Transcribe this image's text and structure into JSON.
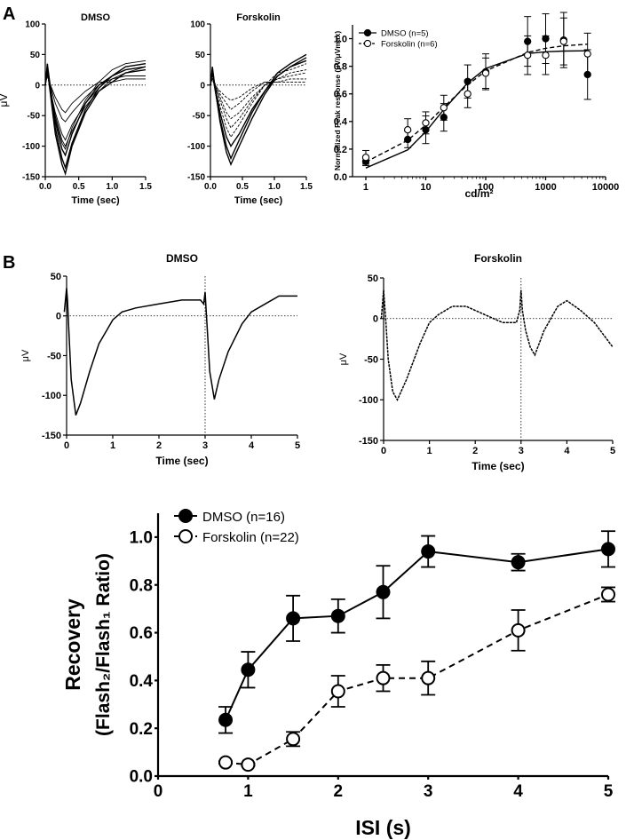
{
  "panel_labels": [
    "A",
    "B"
  ],
  "chart_data": [
    {
      "id": "A_dmso_traces",
      "type": "line",
      "title": "DMSO",
      "xlabel": "Time (sec)",
      "ylabel": "μV",
      "xlim": [
        0,
        1.5
      ],
      "ylim": [
        -150,
        100
      ],
      "xticks": [
        "0.0",
        "0.5",
        "1.0",
        "1.5"
      ],
      "yticks": [
        "100",
        "50",
        "0",
        "-50",
        "-100",
        "-150"
      ],
      "series": [
        {
          "x": [
            0,
            0.03,
            0.06,
            0.15,
            0.25,
            0.3,
            0.4,
            0.6,
            0.8,
            1.0,
            1.2,
            1.5
          ],
          "y": [
            0,
            35,
            10,
            -60,
            -105,
            -115,
            -80,
            -30,
            0,
            15,
            25,
            30
          ]
        },
        {
          "x": [
            0,
            0.03,
            0.06,
            0.15,
            0.25,
            0.3,
            0.4,
            0.6,
            0.8,
            1.0,
            1.2,
            1.5
          ],
          "y": [
            0,
            30,
            5,
            -70,
            -120,
            -135,
            -95,
            -40,
            -5,
            15,
            30,
            35
          ]
        },
        {
          "x": [
            0,
            0.03,
            0.06,
            0.15,
            0.25,
            0.3,
            0.4,
            0.6,
            0.8,
            1.0,
            1.2,
            1.5
          ],
          "y": [
            0,
            25,
            0,
            -80,
            -130,
            -145,
            -100,
            -45,
            -10,
            5,
            20,
            25
          ]
        },
        {
          "x": [
            0,
            0.03,
            0.06,
            0.15,
            0.25,
            0.3,
            0.4,
            0.6,
            0.8,
            1.0,
            1.2,
            1.5
          ],
          "y": [
            0,
            30,
            5,
            -55,
            -95,
            -105,
            -70,
            -25,
            5,
            25,
            35,
            40
          ]
        },
        {
          "x": [
            0,
            0.03,
            0.06,
            0.15,
            0.25,
            0.3,
            0.4,
            0.6,
            0.8,
            1.0,
            1.2,
            1.5
          ],
          "y": [
            0,
            20,
            0,
            -50,
            -90,
            -100,
            -75,
            -35,
            -10,
            10,
            20,
            30
          ]
        },
        {
          "x": [
            0,
            0.03,
            0.06,
            0.15,
            0.25,
            0.3,
            0.4,
            0.6,
            0.8,
            1.0,
            1.2,
            1.5
          ],
          "y": [
            0,
            25,
            0,
            -45,
            -80,
            -90,
            -65,
            -30,
            -5,
            15,
            30,
            35
          ]
        },
        {
          "x": [
            0,
            0.03,
            0.06,
            0.15,
            0.25,
            0.3,
            0.4,
            0.6,
            0.8,
            1.0,
            1.2,
            1.5
          ],
          "y": [
            0,
            20,
            5,
            -30,
            -55,
            -60,
            -45,
            -20,
            0,
            10,
            15,
            15
          ]
        },
        {
          "x": [
            0,
            0.03,
            0.06,
            0.15,
            0.25,
            0.3,
            0.4,
            0.6,
            0.8,
            1.0,
            1.2,
            1.5
          ],
          "y": [
            0,
            15,
            5,
            -20,
            -40,
            -45,
            -30,
            -10,
            5,
            5,
            10,
            10
          ]
        }
      ]
    },
    {
      "id": "A_forskolin_traces",
      "type": "line",
      "title": "Forskolin",
      "xlabel": "Time (sec)",
      "ylabel": "",
      "xlim": [
        0,
        1.5
      ],
      "ylim": [
        -150,
        100
      ],
      "xticks": [
        "0.0",
        "0.5",
        "1.0",
        "1.5"
      ],
      "yticks": [
        "100",
        "50",
        "0",
        "-50",
        "-100",
        "-150"
      ],
      "series": [
        {
          "x": [
            0,
            0.03,
            0.06,
            0.15,
            0.25,
            0.32,
            0.45,
            0.65,
            0.85,
            1.05,
            1.25,
            1.5
          ],
          "y": [
            0,
            30,
            5,
            -60,
            -110,
            -130,
            -100,
            -55,
            -15,
            15,
            30,
            45
          ]
        },
        {
          "x": [
            0,
            0.03,
            0.06,
            0.15,
            0.25,
            0.32,
            0.45,
            0.65,
            0.85,
            1.05,
            1.25,
            1.5
          ],
          "y": [
            0,
            25,
            0,
            -55,
            -100,
            -120,
            -90,
            -45,
            -10,
            20,
            35,
            50
          ]
        },
        {
          "x": [
            0,
            0.03,
            0.06,
            0.15,
            0.25,
            0.32,
            0.45,
            0.65,
            0.85,
            1.05,
            1.25,
            1.5
          ],
          "y": [
            0,
            25,
            5,
            -45,
            -85,
            -100,
            -80,
            -40,
            -10,
            15,
            30,
            40
          ]
        },
        {
          "x": [
            0,
            0.03,
            0.06,
            0.15,
            0.25,
            0.32,
            0.45,
            0.65,
            0.85,
            1.05,
            1.25,
            1.5
          ],
          "y": [
            0,
            20,
            0,
            -35,
            -70,
            -85,
            -65,
            -30,
            0,
            20,
            25,
            35
          ]
        },
        {
          "x": [
            0,
            0.03,
            0.06,
            0.15,
            0.25,
            0.32,
            0.45,
            0.65,
            0.85,
            1.05,
            1.25,
            1.5
          ],
          "y": [
            0,
            20,
            5,
            -25,
            -55,
            -70,
            -55,
            -25,
            0,
            10,
            20,
            25
          ]
        },
        {
          "x": [
            0,
            0.03,
            0.06,
            0.15,
            0.25,
            0.32,
            0.45,
            0.65,
            0.85,
            1.05,
            1.25,
            1.5
          ],
          "y": [
            0,
            15,
            0,
            -20,
            -45,
            -55,
            -45,
            -20,
            0,
            10,
            15,
            20
          ]
        },
        {
          "x": [
            0,
            0.03,
            0.06,
            0.15,
            0.25,
            0.32,
            0.45,
            0.65,
            0.85,
            1.05,
            1.25,
            1.5
          ],
          "y": [
            0,
            15,
            5,
            -15,
            -30,
            -40,
            -30,
            -10,
            5,
            5,
            10,
            10
          ]
        },
        {
          "x": [
            0,
            0.03,
            0.06,
            0.15,
            0.25,
            0.32,
            0.45,
            0.65,
            0.85,
            1.05,
            1.25,
            1.5
          ],
          "y": [
            0,
            10,
            0,
            -10,
            -20,
            -25,
            -20,
            -5,
            5,
            5,
            5,
            5
          ]
        }
      ]
    },
    {
      "id": "A_intensity_response",
      "type": "scatter",
      "xlabel": "cd/m²",
      "ylabel": "Normalized Peak response (μV/μVmax)",
      "xscale": "log",
      "xlim": [
        0.6,
        10000
      ],
      "ylim": [
        0,
        1.1
      ],
      "xticks": [
        "1",
        "10",
        "100",
        "1000",
        "10000"
      ],
      "yticks": [
        "0.0",
        "0.2",
        "0.4",
        "0.6",
        "0.8",
        "1.0"
      ],
      "legend_position": "top-left",
      "series": [
        {
          "name": "DMSO (n=5)",
          "marker": "filled-circle",
          "line": "solid",
          "x": [
            1,
            5,
            10,
            20,
            50,
            100,
            500,
            1000,
            2000,
            5000
          ],
          "y": [
            0.11,
            0.27,
            0.34,
            0.43,
            0.69,
            0.76,
            0.98,
            1.0,
            0.99,
            0.74
          ],
          "err": [
            0.03,
            0.06,
            0.1,
            0.1,
            0.12,
            0.13,
            0.18,
            0.18,
            0.2,
            0.18
          ],
          "fit_y": [
            0.063,
            0.194,
            0.326,
            0.487,
            0.68,
            0.784,
            0.892,
            0.905,
            0.91,
            0.912
          ]
        },
        {
          "name": "Forskolin (n=6)",
          "marker": "open-circle",
          "line": "dashed",
          "x": [
            1,
            5,
            10,
            20,
            50,
            100,
            500,
            1000,
            2000,
            5000
          ],
          "y": [
            0.14,
            0.34,
            0.39,
            0.5,
            0.6,
            0.75,
            0.88,
            0.88,
            0.98,
            0.89
          ],
          "err": [
            0.05,
            0.08,
            0.08,
            0.09,
            0.1,
            0.11,
            0.14,
            0.14,
            0.17,
            0.15
          ],
          "fit_y": [
            0.107,
            0.264,
            0.375,
            0.505,
            0.666,
            0.766,
            0.9,
            0.93,
            0.948,
            0.96
          ]
        }
      ]
    },
    {
      "id": "B_dmso_paired_flash",
      "type": "line",
      "title": "DMSO",
      "xlabel": "Time (sec)",
      "ylabel": "μV",
      "xlim": [
        0,
        5
      ],
      "ylim": [
        -150,
        50
      ],
      "xticks": [
        "0",
        "1",
        "2",
        "3",
        "4",
        "5"
      ],
      "yticks": [
        "50",
        "0",
        "-50",
        "-100",
        "-150"
      ],
      "flash_times": [
        0,
        3
      ],
      "series": [
        {
          "x": [
            -0.05,
            0,
            0.02,
            0.05,
            0.1,
            0.2,
            0.3,
            0.5,
            0.7,
            0.9,
            1.0,
            1.2,
            1.5,
            2.0,
            2.5,
            2.9,
            2.97,
            3.0,
            3.02,
            3.05,
            3.1,
            3.2,
            3.3,
            3.5,
            3.8,
            4.0,
            4.3,
            4.6,
            5.0
          ],
          "y": [
            5,
            35,
            20,
            -20,
            -80,
            -125,
            -110,
            -70,
            -35,
            -15,
            -5,
            5,
            10,
            15,
            20,
            20,
            15,
            30,
            10,
            -20,
            -70,
            -105,
            -80,
            -45,
            -10,
            5,
            15,
            25,
            25
          ]
        }
      ]
    },
    {
      "id": "B_forskolin_paired_flash",
      "type": "line",
      "title": "Forskolin",
      "xlabel": "Time (sec)",
      "ylabel": "μV",
      "xlim": [
        0,
        5
      ],
      "ylim": [
        -150,
        50
      ],
      "xticks": [
        "0",
        "1",
        "2",
        "3",
        "4",
        "5"
      ],
      "yticks": [
        "50",
        "0",
        "-50",
        "-100",
        "-150"
      ],
      "flash_times": [
        0,
        3
      ],
      "series": [
        {
          "x": [
            -0.05,
            0,
            0.02,
            0.05,
            0.1,
            0.2,
            0.3,
            0.5,
            0.8,
            1.0,
            1.2,
            1.5,
            1.8,
            2.2,
            2.6,
            2.9,
            2.97,
            3.0,
            3.03,
            3.1,
            3.2,
            3.3,
            3.5,
            3.8,
            4.0,
            4.3,
            4.6,
            5.0
          ],
          "y": [
            0,
            35,
            20,
            -5,
            -50,
            -90,
            -100,
            -75,
            -30,
            -5,
            5,
            15,
            15,
            5,
            -5,
            -5,
            10,
            35,
            10,
            -15,
            -35,
            -45,
            -15,
            15,
            22,
            10,
            -5,
            -35
          ]
        }
      ]
    },
    {
      "id": "B_recovery",
      "type": "line",
      "xlabel": "ISI (s)",
      "ylabel": "Recovery",
      "ylabel_line2": "(Flash₂/Flash₁ Ratio)",
      "xlim": [
        0,
        5
      ],
      "ylim": [
        0,
        1.1
      ],
      "xticks": [
        "0",
        "1",
        "2",
        "3",
        "4",
        "5"
      ],
      "yticks": [
        "0.0",
        "0.2",
        "0.4",
        "0.6",
        "0.8",
        "1.0"
      ],
      "legend_position": "top-left",
      "series": [
        {
          "name": "DMSO (n=16)",
          "marker": "filled-circle",
          "line": "solid",
          "x": [
            0.75,
            1,
            1.5,
            2,
            2.5,
            3,
            4,
            5
          ],
          "y": [
            0.235,
            0.445,
            0.66,
            0.67,
            0.77,
            0.94,
            0.895,
            0.95
          ],
          "err": [
            0.055,
            0.075,
            0.095,
            0.07,
            0.11,
            0.065,
            0.035,
            0.075
          ]
        },
        {
          "name": "Forskolin (n=22)",
          "marker": "open-circle",
          "line": "dashed",
          "x": [
            0.75,
            1,
            1.5,
            2,
            2.5,
            3,
            4,
            5
          ],
          "y": [
            0.057,
            0.048,
            0.155,
            0.355,
            0.41,
            0.41,
            0.61,
            0.76
          ],
          "err": [
            0.005,
            0.005,
            0.03,
            0.065,
            0.055,
            0.07,
            0.085,
            0.03
          ]
        }
      ]
    }
  ]
}
